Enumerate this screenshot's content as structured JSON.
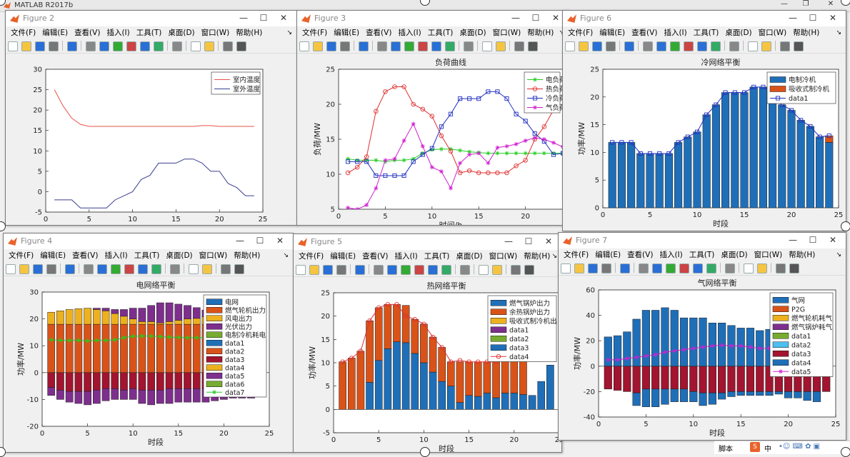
{
  "app": {
    "title": "MATLAB R2017b",
    "controls": [
      "—",
      "❐",
      "✕"
    ]
  },
  "menu": [
    "文件(F)",
    "编辑(E)",
    "查看(V)",
    "插入(I)",
    "工具(T)",
    "桌面(D)",
    "窗口(W)",
    "帮助(H)"
  ],
  "win_buttons": [
    "—",
    "☐",
    "✕"
  ],
  "figures": {
    "f2": {
      "name": "Figure 2"
    },
    "f3": {
      "name": "Figure 3"
    },
    "f6": {
      "name": "Figure 6"
    },
    "f4": {
      "name": "Figure 4"
    },
    "f5": {
      "name": "Figure 5"
    },
    "f7": {
      "name": "Figure 7"
    }
  },
  "taskbar": {
    "label": "脚本",
    "ime": "中"
  },
  "chart_data": [
    {
      "id": "f2",
      "type": "line",
      "title": "",
      "xlabel": "",
      "ylabel": "",
      "xlim": [
        0,
        25
      ],
      "ylim": [
        -5,
        30
      ],
      "xticks": [
        0,
        5,
        10,
        15,
        20,
        25
      ],
      "yticks": [
        -5,
        0,
        5,
        10,
        15,
        20,
        25,
        30
      ],
      "x": [
        1,
        2,
        3,
        4,
        5,
        6,
        7,
        8,
        9,
        10,
        11,
        12,
        13,
        14,
        15,
        16,
        17,
        18,
        19,
        20,
        21,
        22,
        23,
        24
      ],
      "series": [
        {
          "name": "室内温度",
          "color": "#e8534a",
          "values": [
            25,
            21,
            18,
            16.5,
            16,
            16,
            16,
            16,
            16,
            16,
            16,
            16,
            16,
            16,
            16,
            16,
            16,
            16.2,
            16.2,
            16,
            16,
            16,
            16,
            16
          ]
        },
        {
          "name": "室外温度",
          "color": "#3a3f8f",
          "values": [
            -2,
            -2,
            -2,
            -4,
            -4,
            -4,
            -4,
            -2,
            -1,
            0,
            3,
            4,
            7,
            7,
            7,
            8,
            8,
            7,
            5,
            5,
            2,
            1,
            -1,
            -1
          ]
        }
      ],
      "legend": "top-right"
    },
    {
      "id": "f3",
      "type": "line",
      "title": "负荷曲线",
      "xlabel": "时间/h",
      "ylabel": "负荷/MW",
      "xlim": [
        0,
        24
      ],
      "ylim": [
        5,
        25
      ],
      "xticks": [
        0,
        5,
        10,
        15,
        20
      ],
      "yticks": [
        5,
        10,
        15,
        20,
        25
      ],
      "x": [
        1,
        2,
        3,
        4,
        5,
        6,
        7,
        8,
        9,
        10,
        11,
        12,
        13,
        14,
        15,
        16,
        17,
        18,
        19,
        20,
        21,
        22,
        23,
        24
      ],
      "series": [
        {
          "name": "电负荷",
          "color": "#22cc22",
          "marker": "star",
          "values": [
            12.2,
            12,
            12,
            12,
            11.8,
            12,
            12,
            12.2,
            13,
            13.5,
            13.6,
            13.6,
            13.4,
            13.2,
            13.1,
            13,
            13,
            13,
            13,
            13,
            13,
            13,
            13,
            13
          ]
        },
        {
          "name": "热负荷",
          "color": "#e03030",
          "marker": "circle",
          "values": [
            10.2,
            11,
            12.5,
            19,
            21.8,
            22.5,
            22.5,
            20,
            19.3,
            18.3,
            15.5,
            13.3,
            10.2,
            10.5,
            10.2,
            10.2,
            10.2,
            10.2,
            11.2,
            12,
            15,
            16.8,
            19.2,
            null
          ]
        },
        {
          "name": "冷负荷",
          "color": "#2030c0",
          "marker": "square",
          "values": [
            11.8,
            11.8,
            11.8,
            9.8,
            9.8,
            9.8,
            9.8,
            11.8,
            12.8,
            13.7,
            16.8,
            18.6,
            20.8,
            20.8,
            20.8,
            21.8,
            21.8,
            20.8,
            18.6,
            17.6,
            15.8,
            14.7,
            12.8,
            13
          ]
        },
        {
          "name": "气负荷",
          "color": "#d020d0",
          "marker": "star",
          "values": [
            5.2,
            5,
            5.6,
            8,
            12,
            12.2,
            14.8,
            17.2,
            14,
            11,
            10.4,
            8,
            11.6,
            12.8,
            13,
            11.6,
            13.8,
            14,
            14.3,
            14.8,
            15.2,
            15,
            14.5,
            13.9
          ]
        }
      ],
      "legend_labels": [
        "电负荷",
        "热负荷",
        "冷负荷",
        "气负荷"
      ],
      "legend": "top-right"
    },
    {
      "id": "f6",
      "type": "bar",
      "title": "冷网络平衡",
      "xlabel": "时段",
      "ylabel": "功率/MW",
      "xlim": [
        0,
        25
      ],
      "ylim": [
        0,
        25
      ],
      "xticks": [
        0,
        5,
        10,
        15,
        20,
        25
      ],
      "yticks": [
        0,
        5,
        10,
        15,
        20,
        25
      ],
      "x": [
        1,
        2,
        3,
        4,
        5,
        6,
        7,
        8,
        9,
        10,
        11,
        12,
        13,
        14,
        15,
        16,
        17,
        18,
        19,
        20,
        21,
        22,
        23,
        24
      ],
      "series": [
        {
          "name": "电制冷机",
          "color": "#1f6fb8",
          "values": [
            11.8,
            11.8,
            11.8,
            9.8,
            9.8,
            9.8,
            9.8,
            11.8,
            12.8,
            13.7,
            16.8,
            18.6,
            20.8,
            20.8,
            20.8,
            21.8,
            21.8,
            20.8,
            18.6,
            17.6,
            15.8,
            14.7,
            12.8,
            11.8
          ]
        },
        {
          "name": "吸收式制冷机",
          "color": "#d95319",
          "values": [
            0,
            0,
            0,
            0,
            0,
            0,
            0,
            0,
            0,
            0,
            0,
            0,
            0,
            0,
            0,
            0,
            0,
            0,
            0,
            0,
            0,
            0,
            0,
            1.2
          ]
        }
      ],
      "line": {
        "name": "data1",
        "color": "#2030c0",
        "values": [
          11.8,
          11.8,
          11.8,
          9.8,
          9.8,
          9.8,
          9.8,
          11.8,
          12.8,
          13.7,
          16.8,
          18.6,
          20.8,
          20.8,
          20.8,
          21.8,
          21.8,
          20.8,
          18.6,
          17.6,
          15.8,
          14.7,
          12.8,
          13
        ]
      },
      "legend": "top-right"
    },
    {
      "id": "f4",
      "type": "bar",
      "title": "电网络平衡",
      "xlabel": "时段",
      "ylabel": "功率/MW",
      "xlim": [
        0,
        25
      ],
      "ylim": [
        -20,
        30
      ],
      "xticks": [
        0,
        5,
        10,
        15,
        20,
        25
      ],
      "yticks": [
        -20,
        -10,
        0,
        10,
        20,
        30
      ],
      "x": [
        1,
        2,
        3,
        4,
        5,
        6,
        7,
        8,
        9,
        10,
        11,
        12,
        13,
        14,
        15,
        16,
        17,
        18,
        19,
        20,
        21,
        22,
        23,
        24
      ],
      "pos_series": [
        {
          "name": "电网",
          "color": "#1f6fb8",
          "values": [
            0,
            0,
            0,
            0,
            0,
            0,
            0,
            0,
            0,
            0,
            0,
            0,
            0,
            0,
            0,
            0,
            0,
            0,
            0,
            0,
            0,
            0,
            0,
            0
          ]
        },
        {
          "name": "燃气轮机出力",
          "color": "#d95319",
          "values": [
            18,
            18,
            18,
            18,
            18,
            18,
            18,
            18,
            18,
            18,
            18,
            18,
            18,
            18,
            18,
            18,
            18,
            18,
            18,
            18,
            18,
            18,
            18,
            18
          ]
        },
        {
          "name": "风电出力",
          "color": "#edb120",
          "values": [
            4.5,
            5,
            5.5,
            5.8,
            6,
            5.5,
            5,
            4,
            3,
            2,
            1,
            1,
            0.5,
            1,
            1.5,
            2,
            2.2,
            2.8,
            3.2,
            4,
            4.5,
            5,
            4.5,
            4
          ]
        },
        {
          "name": "光伏出力",
          "color": "#7e2f8e",
          "values": [
            0,
            0,
            0,
            0,
            0,
            0.5,
            1,
            1.5,
            2.5,
            4,
            5,
            6,
            7.5,
            7,
            6,
            5,
            4,
            2.5,
            1,
            0,
            0,
            0,
            0,
            0
          ]
        }
      ],
      "neg_series": [
        {
          "name": "电制冷机耗电",
          "color": "#a2142f",
          "values": [
            -5.5,
            -6.5,
            -7,
            -7,
            -7,
            -6.5,
            -6,
            -6,
            -6.5,
            -6,
            -6.5,
            -6.5,
            -6.5,
            -6,
            -6,
            -6,
            -6,
            -6,
            -6,
            -6,
            -6,
            -6,
            -6,
            -6
          ]
        },
        {
          "name": "data5",
          "color": "#7e2f8e",
          "values": [
            -3,
            -3.5,
            -4,
            -4.5,
            -5,
            -5,
            -4.5,
            -4,
            -3.5,
            -4,
            -5,
            -5.5,
            -5,
            -5.5,
            -5,
            -5,
            -5,
            -5,
            -4.5,
            -4,
            -3.5,
            -3.5,
            -3.5,
            -3
          ]
        }
      ],
      "line": {
        "name": "data7",
        "color": "#22cc22",
        "values": [
          12.2,
          12,
          12,
          12,
          11.8,
          12,
          12,
          12.2,
          13,
          13.5,
          13.6,
          13.6,
          13.4,
          13.2,
          13.1,
          13,
          13,
          13,
          13,
          13,
          13,
          13,
          13,
          13
        ]
      },
      "legend_labels": [
        "电网",
        "燃气轮机出力",
        "风电出力",
        "光伏出力",
        "电制冷机耗电",
        "data1",
        "data2",
        "data3",
        "data4",
        "data5",
        "data6",
        "data7"
      ],
      "legend": "top-right"
    },
    {
      "id": "f5",
      "type": "bar",
      "title": "热网络平衡",
      "xlabel": "时段",
      "ylabel": "功率/MW",
      "xlim": [
        0,
        25
      ],
      "ylim": [
        -5,
        25
      ],
      "xticks": [
        0,
        5,
        10,
        15,
        20,
        25
      ],
      "yticks": [
        -5,
        0,
        5,
        10,
        15,
        20,
        25
      ],
      "x": [
        1,
        2,
        3,
        4,
        5,
        6,
        7,
        8,
        9,
        10,
        11,
        12,
        13,
        14,
        15,
        16,
        17,
        18,
        19,
        20,
        21,
        22,
        23,
        24
      ],
      "series": [
        {
          "name": "燃气锅炉出力",
          "color": "#1f6fb8",
          "values": [
            0,
            0,
            0,
            5.8,
            10.5,
            13,
            14.5,
            14.3,
            12,
            10,
            8,
            6,
            5,
            1.5,
            3,
            2.8,
            3.5,
            2.5,
            3.5,
            3.5,
            3.2,
            3,
            6,
            9.5
          ]
        },
        {
          "name": "余热锅炉出力",
          "color": "#d95319",
          "values": [
            10.2,
            11,
            12.5,
            13.2,
            11.3,
            9.5,
            8,
            8,
            7.3,
            8.3,
            7.5,
            7.3,
            5.2,
            8.7,
            7.2,
            7.4,
            6.7,
            7.7,
            7.7,
            8.5,
            11.8,
            0,
            0,
            0
          ]
        },
        {
          "name": "吸收式制冷机出",
          "color": "#edb120",
          "values": [
            0,
            0,
            0,
            0,
            0,
            0,
            0,
            0,
            0,
            0,
            0,
            0,
            0,
            0,
            0,
            0,
            0,
            0,
            0,
            0,
            0,
            0,
            0,
            0
          ]
        }
      ],
      "line": {
        "name": "data4",
        "color": "#e03030",
        "values": [
          10.2,
          11,
          12.5,
          19,
          21.8,
          22.5,
          22.5,
          20,
          19.3,
          18.3,
          15.5,
          13.3,
          10.2,
          10.5,
          10.2,
          10.2,
          10.2,
          10.2,
          11.2,
          12,
          15,
          null,
          null,
          null
        ]
      },
      "legend_labels": [
        "燃气锅炉出力",
        "余热锅炉出力",
        "吸收式制冷机出",
        "data1",
        "data2",
        "data3",
        "data4"
      ],
      "legend": "top-right"
    },
    {
      "id": "f7",
      "type": "bar",
      "title": "气网络平衡",
      "xlabel": "时段",
      "ylabel": "功率/MW",
      "xlim": [
        0,
        25
      ],
      "ylim": [
        -40,
        60
      ],
      "xticks": [
        0,
        5,
        10,
        15,
        20,
        25
      ],
      "yticks": [
        -40,
        -20,
        0,
        20,
        40,
        60
      ],
      "x": [
        1,
        2,
        3,
        4,
        5,
        6,
        7,
        8,
        9,
        10,
        11,
        12,
        13,
        14,
        15,
        16,
        17,
        18,
        19,
        20,
        21,
        22,
        23,
        24
      ],
      "pos_series": [
        {
          "name": "气网",
          "color": "#1f6fb8",
          "values": [
            23,
            24,
            27,
            37,
            44,
            44,
            46,
            44,
            38,
            38,
            38,
            34,
            34,
            32,
            30,
            30,
            28,
            29,
            24,
            24,
            24,
            22,
            20,
            20
          ]
        }
      ],
      "neg_series": [
        {
          "name": "data3",
          "color": "#a2142f",
          "values": [
            -18,
            -19,
            -20,
            -21,
            -18,
            -18,
            -18,
            -18,
            -18,
            -20,
            -21,
            -21,
            -21,
            -20,
            -20,
            -20,
            -20,
            -20,
            -20,
            -20,
            -20,
            -20,
            -20,
            -20
          ]
        },
        {
          "name": "data4",
          "color": "#1f6fb8",
          "values": [
            0,
            0,
            0,
            -10,
            -14,
            -14,
            -12,
            -10,
            -10,
            -8,
            -10,
            -9,
            -5,
            -4,
            -3,
            -3,
            -3,
            -3,
            -2,
            -5,
            -5,
            -7,
            -8,
            0
          ]
        }
      ],
      "line": {
        "name": "data5",
        "color": "#d020d0",
        "values": [
          5,
          5,
          6,
          7,
          8,
          9,
          11,
          12,
          13,
          14,
          15,
          16,
          16.5,
          16,
          16,
          15,
          14,
          14,
          12,
          12,
          12,
          11,
          11,
          10
        ]
      },
      "legend_labels": [
        "气网",
        "P2G",
        "燃气轮机耗气",
        "燃气锅炉耗气",
        "data1",
        "data2",
        "data3",
        "data4",
        "data5"
      ],
      "legend": "top-right"
    }
  ]
}
